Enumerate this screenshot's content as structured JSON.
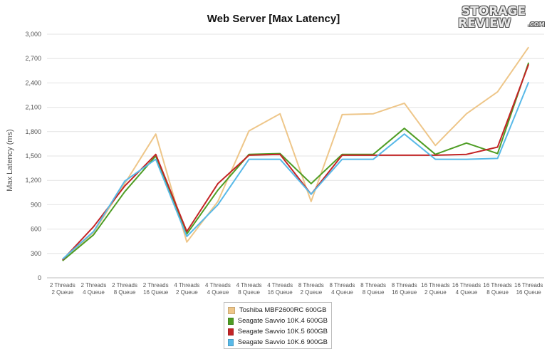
{
  "chart_data": {
    "type": "line",
    "title": "Web Server [Max Latency]",
    "ylabel": "Max Latency (ms)",
    "xlabel": "",
    "ylim": [
      0,
      3000
    ],
    "yticks": [
      "0",
      "300",
      "600",
      "900",
      "1,200",
      "1,500",
      "1,800",
      "2,100",
      "2,400",
      "2,700",
      "3,000"
    ],
    "ytick_values": [
      0,
      300,
      600,
      900,
      1200,
      1500,
      1800,
      2100,
      2400,
      2700,
      3000
    ],
    "categories": [
      [
        "2 Threads",
        "2 Queue"
      ],
      [
        "2 Threads",
        "4 Queue"
      ],
      [
        "2 Threads",
        "8 Queue"
      ],
      [
        "2 Threads",
        "16 Queue"
      ],
      [
        "4 Threads",
        "2 Queue"
      ],
      [
        "4 Threads",
        "4 Queue"
      ],
      [
        "4 Threads",
        "8 Queue"
      ],
      [
        "4 Threads",
        "16 Queue"
      ],
      [
        "8 Threads",
        "2 Queue"
      ],
      [
        "8 Threads",
        "4 Queue"
      ],
      [
        "8 Threads",
        "8 Queue"
      ],
      [
        "8 Threads",
        "16 Queue"
      ],
      [
        "16 Threads",
        "2 Queue"
      ],
      [
        "16 Threads",
        "4 Queue"
      ],
      [
        "16 Threads",
        "8 Queue"
      ],
      [
        "16 Threads",
        "16 Queue"
      ]
    ],
    "grid": true,
    "legend_position": "bottom",
    "series": [
      {
        "name": "Toshiba MBF2600RC 600GB",
        "color": "#eec689",
        "values": [
          220,
          560,
          1160,
          1770,
          440,
          940,
          1810,
          2020,
          940,
          2010,
          2020,
          2150,
          1630,
          2020,
          2290,
          2840
        ]
      },
      {
        "name": "Seagate Savvio 10K.4 600GB",
        "color": "#4e9d24",
        "values": [
          210,
          530,
          1060,
          1500,
          540,
          1080,
          1520,
          1530,
          1160,
          1520,
          1520,
          1840,
          1520,
          1660,
          1530,
          2650
        ]
      },
      {
        "name": "Seagate Savvio 10K.5 600GB",
        "color": "#c32426",
        "values": [
          220,
          630,
          1130,
          1520,
          570,
          1160,
          1510,
          1520,
          1030,
          1510,
          1510,
          1510,
          1510,
          1520,
          1610,
          2630
        ]
      },
      {
        "name": "Seagate Savvio 10K.6 900GB",
        "color": "#58b9e8",
        "values": [
          230,
          570,
          1190,
          1460,
          510,
          900,
          1460,
          1460,
          1030,
          1460,
          1460,
          1770,
          1460,
          1460,
          1470,
          2410
        ]
      }
    ]
  },
  "logo": {
    "line1": "STORAGE",
    "line2": "REVIEW",
    "suffix": ".COM"
  }
}
